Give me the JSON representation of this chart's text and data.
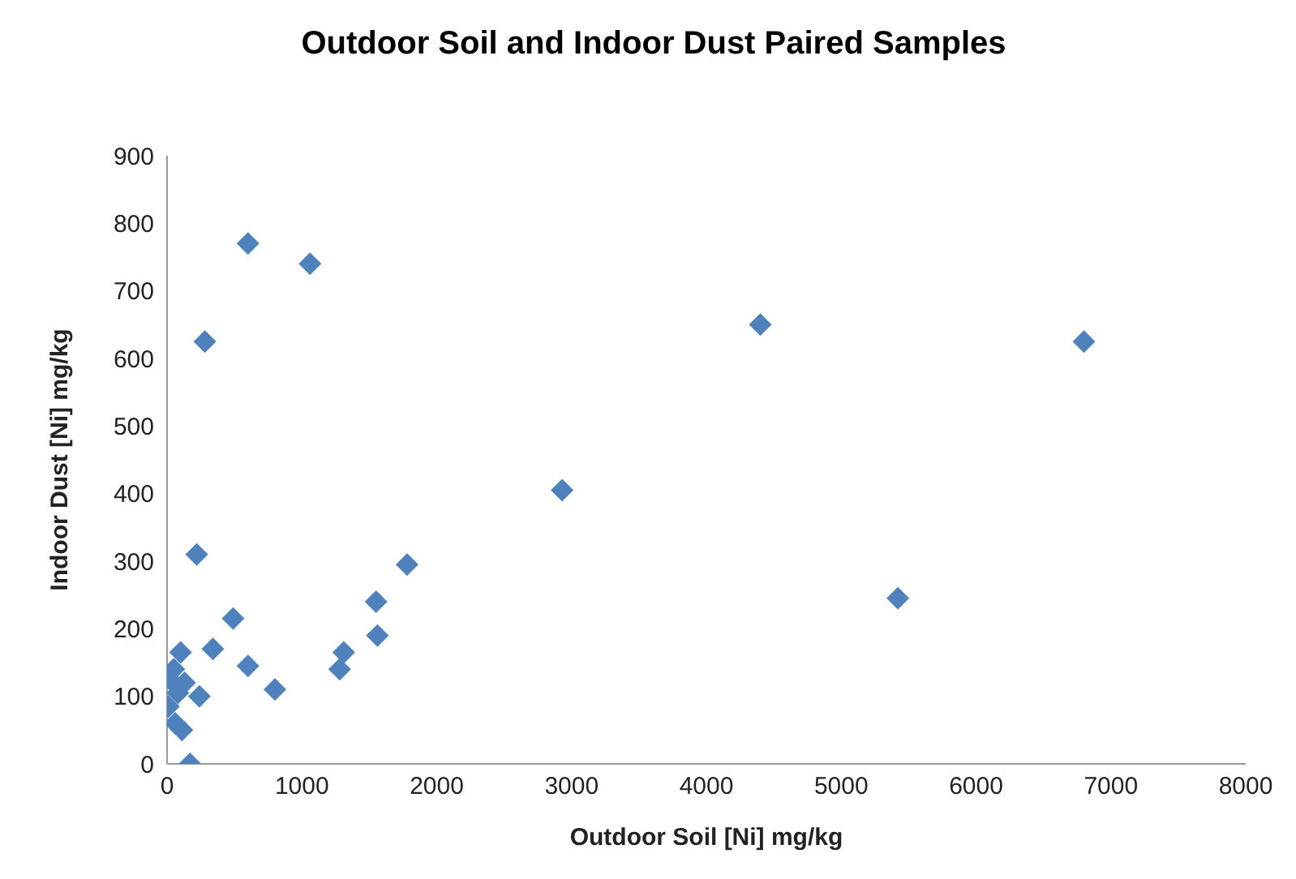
{
  "chart_data": {
    "type": "scatter",
    "title": "Outdoor Soil and Indoor Dust Paired Samples",
    "xlabel": "Outdoor Soil [Ni] mg/kg",
    "ylabel": "Indoor Dust [Ni] mg/kg",
    "x": [
      600,
      1060,
      280,
      4400,
      6800,
      2930,
      220,
      5420,
      1780,
      1550,
      1560,
      490,
      1310,
      1280,
      340,
      600,
      800,
      100,
      20,
      60,
      110,
      170,
      10,
      80,
      240,
      50,
      130
    ],
    "series": [
      {
        "color": "#4f81bd",
        "values": [
          770,
          740,
          625,
          650,
          625,
          405,
          310,
          245,
          295,
          240,
          190,
          215,
          165,
          140,
          170,
          145,
          110,
          165,
          125,
          60,
          50,
          0,
          85,
          105,
          100,
          140,
          120
        ]
      }
    ],
    "marker": "diamond",
    "xlim": [
      0,
      8000
    ],
    "xticks": [
      0,
      1000,
      2000,
      3000,
      4000,
      5000,
      6000,
      7000,
      8000
    ],
    "ylim": [
      0,
      900
    ],
    "yticks": [
      0,
      100,
      200,
      300,
      400,
      500,
      600,
      700,
      800,
      900
    ],
    "grid": false,
    "legend": false
  }
}
